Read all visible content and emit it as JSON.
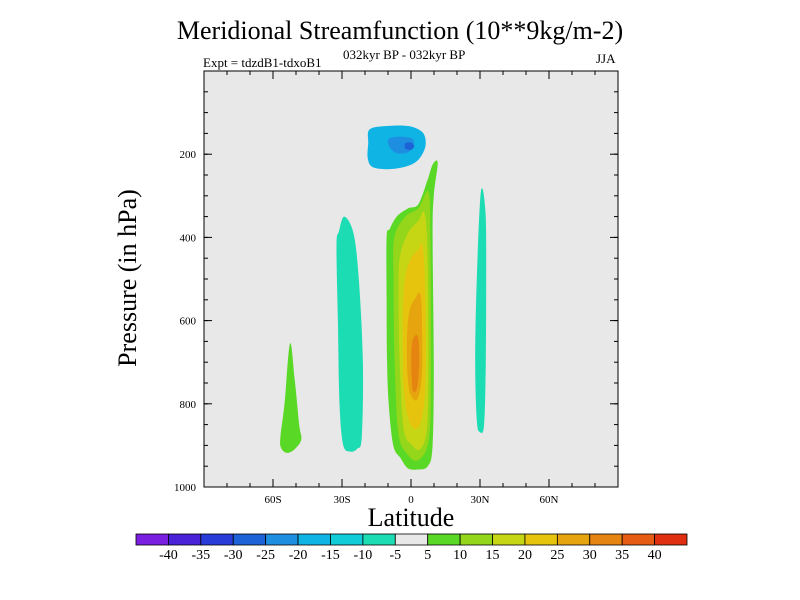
{
  "chart_data": {
    "type": "contour",
    "title": "Meridional Streamfunction (10**9kg/m-2)",
    "subtitle_left": "Expt = tdzdB1-tdxoB1",
    "subtitle_center": "032kyr BP - 032kyr BP",
    "subtitle_right": "JJA",
    "xlabel": "Latitude",
    "ylabel": "Pressure (in hPa)",
    "xlim": [
      -90,
      90
    ],
    "ylim": [
      1000,
      0
    ],
    "x_ticks": [
      {
        "value": -60,
        "label": "60S"
      },
      {
        "value": -30,
        "label": "30S"
      },
      {
        "value": 0,
        "label": "0"
      },
      {
        "value": 30,
        "label": "30N"
      },
      {
        "value": 60,
        "label": "60N"
      }
    ],
    "y_ticks": [
      {
        "value": 200,
        "label": "200"
      },
      {
        "value": 400,
        "label": "400"
      },
      {
        "value": 600,
        "label": "600"
      },
      {
        "value": 800,
        "label": "800"
      },
      {
        "value": 1000,
        "label": "1000"
      }
    ],
    "background_color": "#e8e8e8",
    "colorbar": {
      "levels": [
        "-40",
        "-35",
        "-30",
        "-25",
        "-20",
        "-15",
        "-10",
        "-5",
        "5",
        "10",
        "15",
        "20",
        "25",
        "30",
        "35",
        "40"
      ],
      "colors": [
        "#7a1ee0",
        "#4a22d8",
        "#2a3cd8",
        "#1e62d8",
        "#1e8ee0",
        "#10b4e4",
        "#12ccd8",
        "#1cdcb4",
        "#e8e8e8",
        "#5ad826",
        "#94d61a",
        "#c6d614",
        "#e6c40e",
        "#e6a40e",
        "#e68412",
        "#e65c14",
        "#e02e10"
      ]
    },
    "regions": [
      {
        "name": "upper-cyclone",
        "level": -15,
        "color": "#10b4e4",
        "points": [
          [
            -17.9,
            140
          ],
          [
            -9.5,
            132
          ],
          [
            -0.5,
            133
          ],
          [
            5.4,
            150
          ],
          [
            6.1,
            185
          ],
          [
            1.8,
            220
          ],
          [
            -7.1,
            235
          ],
          [
            -16.3,
            232
          ],
          [
            -18.8,
            210
          ],
          [
            -18.6,
            175
          ]
        ]
      },
      {
        "name": "upper-cyclone-core",
        "level": -20,
        "color": "#1e8ee0",
        "points": [
          [
            -9.5,
            162
          ],
          [
            -4.6,
            158
          ],
          [
            0.6,
            163
          ],
          [
            1.1,
            180
          ],
          [
            -1.4,
            196
          ],
          [
            -6.4,
            197
          ],
          [
            -9.6,
            180
          ]
        ]
      },
      {
        "name": "upper-cyclone-inner",
        "level": -25,
        "color": "#1e62d8",
        "points": [
          [
            -2.5,
            174
          ],
          [
            0,
            172
          ],
          [
            1.4,
            180
          ],
          [
            0.2,
            189
          ],
          [
            -2.4,
            187
          ]
        ]
      },
      {
        "name": "west-band",
        "level": -10,
        "color": "#1cdcb4",
        "points": [
          [
            -31.3,
            385
          ],
          [
            -29,
            350
          ],
          [
            -25,
            390
          ],
          [
            -22.7,
            500
          ],
          [
            -20.9,
            700
          ],
          [
            -21.4,
            880
          ],
          [
            -23.4,
            908
          ],
          [
            -26.5,
            915
          ],
          [
            -29.5,
            898
          ],
          [
            -31.1,
            800
          ],
          [
            -31.8,
            600
          ],
          [
            -32.4,
            420
          ]
        ]
      },
      {
        "name": "east-band",
        "level": -10,
        "color": "#1cdcb4",
        "points": [
          [
            30.4,
            290
          ],
          [
            32.4,
            340
          ],
          [
            32.7,
            500
          ],
          [
            32.5,
            700
          ],
          [
            31.8,
            850
          ],
          [
            30,
            868
          ],
          [
            28.6,
            840
          ],
          [
            27.9,
            700
          ],
          [
            28.6,
            500
          ]
        ]
      },
      {
        "name": "far-south-band",
        "level": 5,
        "color": "#5ad826",
        "points": [
          [
            -52.6,
            655
          ],
          [
            -50.6,
            740
          ],
          [
            -48.6,
            850
          ],
          [
            -47.7,
            886
          ],
          [
            -50.8,
            910
          ],
          [
            -54,
            918
          ],
          [
            -56.5,
            906
          ],
          [
            -56.8,
            880
          ],
          [
            -55,
            800
          ]
        ]
      },
      {
        "name": "equatorial-l1",
        "level": 5,
        "color": "#5ad826",
        "points": [
          [
            11.6,
            221
          ],
          [
            9.9,
            300
          ],
          [
            9.4,
            400
          ],
          [
            9.9,
            700
          ],
          [
            9.4,
            900
          ],
          [
            7.3,
            950
          ],
          [
            2.7,
            958
          ],
          [
            -1.4,
            955
          ],
          [
            -4.6,
            930
          ],
          [
            -7.7,
            900
          ],
          [
            -9.7,
            800
          ],
          [
            -10.4,
            700
          ],
          [
            -10.6,
            550
          ],
          [
            -10.6,
            400
          ],
          [
            -9.3,
            380
          ],
          [
            -6.2,
            350
          ],
          [
            -1.2,
            330
          ],
          [
            3.2,
            320
          ],
          [
            7.3,
            260
          ],
          [
            9.4,
            225
          ]
        ]
      },
      {
        "name": "equatorial-l2",
        "level": 10,
        "color": "#94d61a",
        "points": [
          [
            7.6,
            290
          ],
          [
            8.4,
            400
          ],
          [
            8.7,
            700
          ],
          [
            7.9,
            880
          ],
          [
            3.3,
            935
          ],
          [
            -1.8,
            920
          ],
          [
            -5.5,
            870
          ],
          [
            -7.1,
            700
          ],
          [
            -7.6,
            500
          ],
          [
            -7.3,
            400
          ],
          [
            -2.5,
            350
          ],
          [
            3.2,
            330
          ]
        ]
      },
      {
        "name": "equatorial-l3",
        "level": 15,
        "color": "#c6d614",
        "points": [
          [
            5.8,
            340
          ],
          [
            7.1,
            420
          ],
          [
            7.6,
            650
          ],
          [
            7.1,
            850
          ],
          [
            4.2,
            908
          ],
          [
            0.5,
            900
          ],
          [
            -3.2,
            860
          ],
          [
            -4.9,
            700
          ],
          [
            -5.4,
            550
          ],
          [
            -4.9,
            450
          ],
          [
            -1.4,
            390
          ],
          [
            3.2,
            360
          ]
        ]
      },
      {
        "name": "equatorial-l4",
        "level": 20,
        "color": "#e6c40e",
        "points": [
          [
            5.1,
            420
          ],
          [
            6.3,
            550
          ],
          [
            6.3,
            750
          ],
          [
            4.5,
            840
          ],
          [
            1.5,
            860
          ],
          [
            -1.4,
            830
          ],
          [
            -3.2,
            750
          ],
          [
            -3.6,
            600
          ],
          [
            -2.7,
            500
          ],
          [
            0,
            450
          ],
          [
            3.2,
            430
          ]
        ]
      },
      {
        "name": "equatorial-l5",
        "level": 25,
        "color": "#e6a40e",
        "points": [
          [
            4.2,
            540
          ],
          [
            4.9,
            650
          ],
          [
            4.6,
            740
          ],
          [
            2.7,
            790
          ],
          [
            0,
            780
          ],
          [
            -1.4,
            740
          ],
          [
            -1.8,
            650
          ],
          [
            -0.8,
            580
          ],
          [
            1.5,
            550
          ]
        ]
      },
      {
        "name": "equatorial-l6",
        "level": 30,
        "color": "#e68412",
        "points": [
          [
            3.1,
            640
          ],
          [
            3.6,
            700
          ],
          [
            2.7,
            760
          ],
          [
            0.9,
            770
          ],
          [
            0.2,
            730
          ],
          [
            0.2,
            670
          ],
          [
            1.2,
            640
          ]
        ]
      }
    ]
  }
}
